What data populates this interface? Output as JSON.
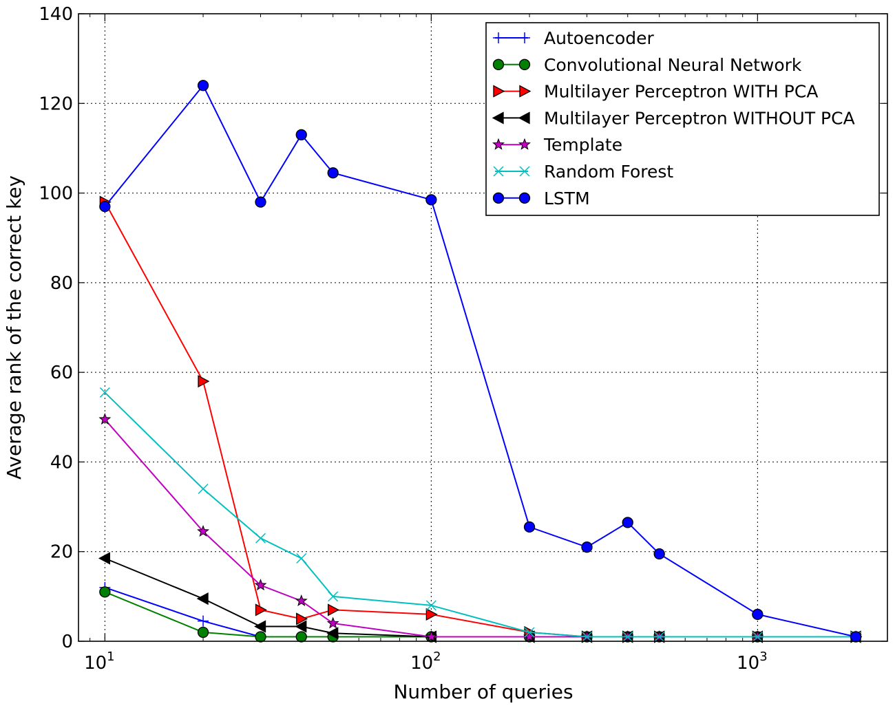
{
  "chart_data": {
    "type": "line",
    "xlabel": "Number of queries",
    "ylabel": "Average rank of the correct key",
    "xscale": "log",
    "xlim": [
      8.3,
      2500
    ],
    "ylim": [
      0,
      140
    ],
    "grid": true,
    "legend_position": "top-right",
    "x_ticks": [
      {
        "value": 10,
        "base": "10",
        "exp": "1"
      },
      {
        "value": 100,
        "base": "10",
        "exp": "2"
      },
      {
        "value": 1000,
        "base": "10",
        "exp": "3"
      }
    ],
    "y_ticks": [
      {
        "value": 0,
        "label": "0"
      },
      {
        "value": 20,
        "label": "20"
      },
      {
        "value": 40,
        "label": "40"
      },
      {
        "value": 60,
        "label": "60"
      },
      {
        "value": 80,
        "label": "80"
      },
      {
        "value": 100,
        "label": "100"
      },
      {
        "value": 120,
        "label": "120"
      },
      {
        "value": 140,
        "label": "140"
      }
    ],
    "series": [
      {
        "name": "Autoencoder",
        "color": "#0000ff",
        "marker": "plus",
        "legend_marker_color": "#0000ff",
        "x": [
          10,
          20,
          30,
          40,
          50,
          100,
          200,
          300,
          400,
          500,
          1000,
          2000
        ],
        "y": [
          12,
          4.5,
          1,
          1,
          1,
          1,
          1,
          1,
          1,
          1,
          1,
          1
        ]
      },
      {
        "name": "Convolutional Neural Network",
        "color": "#008000",
        "marker": "circle",
        "legend_marker_color": "#008000",
        "x": [
          10,
          20,
          30,
          40,
          50,
          100,
          200,
          300,
          400,
          500,
          1000,
          2000
        ],
        "y": [
          11,
          2,
          1,
          1,
          1,
          1,
          1,
          1,
          1,
          1,
          1,
          1
        ]
      },
      {
        "name": "Multilayer Perceptron WITH PCA",
        "color": "#ff0000",
        "marker": "triangle-right",
        "legend_marker_color": "#ff0000",
        "x": [
          10,
          20,
          30,
          40,
          50,
          100,
          200,
          300,
          400,
          500,
          1000,
          2000
        ],
        "y": [
          98,
          58,
          7,
          5,
          7,
          6,
          2,
          1,
          1,
          1,
          1,
          1
        ]
      },
      {
        "name": "Multilayer Perceptron WITHOUT PCA",
        "color": "#000000",
        "marker": "triangle-left",
        "legend_marker_color": "#000000",
        "x": [
          10,
          20,
          30,
          40,
          50,
          100,
          200,
          300,
          400,
          500,
          1000,
          2000
        ],
        "y": [
          18.5,
          9.5,
          3.3,
          3.3,
          1.8,
          1,
          1,
          1,
          1,
          1,
          1,
          1
        ]
      },
      {
        "name": "Template",
        "color": "#bf00bf",
        "marker": "star",
        "legend_marker_color": "#bf00bf",
        "x": [
          10,
          20,
          30,
          40,
          50,
          100,
          200,
          300,
          400,
          500,
          1000,
          2000
        ],
        "y": [
          49.5,
          24.5,
          12.5,
          9,
          4,
          1,
          1,
          1,
          1,
          1,
          1,
          1
        ]
      },
      {
        "name": "Random Forest",
        "color": "#00bfbf",
        "marker": "x",
        "legend_marker_color": "#00bfbf",
        "x": [
          10,
          20,
          30,
          40,
          50,
          100,
          200,
          300,
          400,
          500,
          1000,
          2000
        ],
        "y": [
          55.5,
          34,
          23,
          18.5,
          10,
          8,
          2,
          1,
          1,
          1,
          1,
          1
        ]
      },
      {
        "name": "LSTM",
        "color": "#0000ff",
        "marker": "circle",
        "legend_marker_color": "#0000ff",
        "x": [
          10,
          20,
          30,
          40,
          50,
          100,
          200,
          300,
          400,
          500,
          1000,
          2000
        ],
        "y": [
          97,
          124,
          98,
          113,
          104.5,
          98.5,
          25.5,
          21,
          26.5,
          19.5,
          6,
          1
        ]
      }
    ]
  }
}
